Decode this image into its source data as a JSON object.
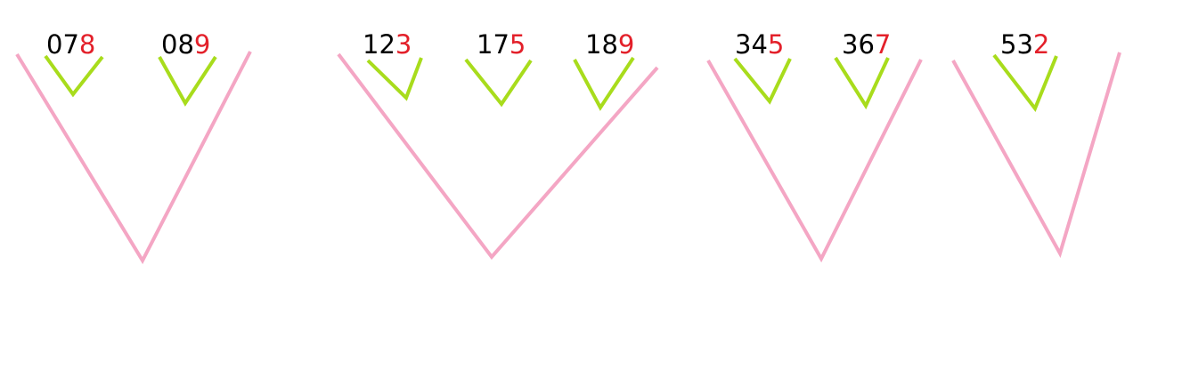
{
  "colors": {
    "background": "#ffffff",
    "text": "#000000",
    "highlight_digit": "#e3202a",
    "group_bracket": "#f4a6c4",
    "item_check": "#a8dc1c"
  },
  "groups": [
    {
      "items": [
        {
          "prefix": "07",
          "last": "8"
        },
        {
          "prefix": "08",
          "last": "9"
        }
      ]
    },
    {
      "items": [
        {
          "prefix": "12",
          "last": "3"
        },
        {
          "prefix": "17",
          "last": "5"
        },
        {
          "prefix": "18",
          "last": "9"
        }
      ]
    },
    {
      "items": [
        {
          "prefix": "34",
          "last": "5"
        },
        {
          "prefix": "36",
          "last": "7"
        }
      ]
    },
    {
      "items": [
        {
          "prefix": "53",
          "last": "2"
        }
      ]
    }
  ]
}
